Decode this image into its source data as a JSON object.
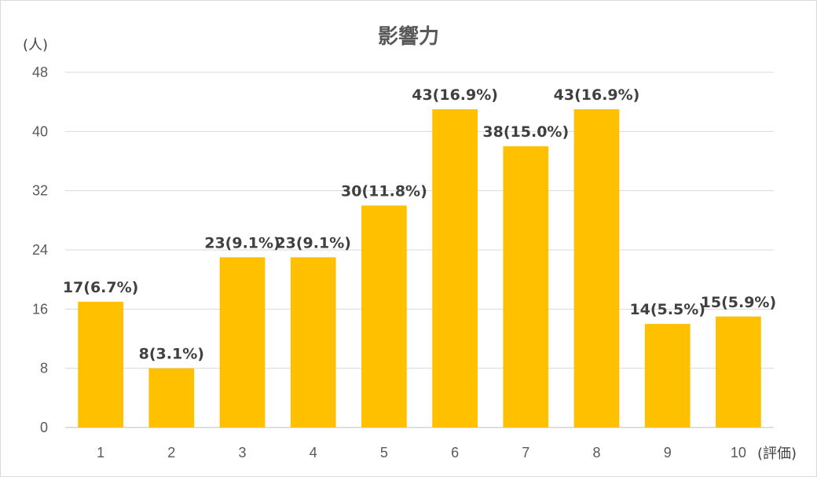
{
  "chart_data": {
    "type": "bar",
    "title": "影響力",
    "ylabel": "(人)",
    "xlabel": "(評価)",
    "categories": [
      "1",
      "2",
      "3",
      "4",
      "5",
      "6",
      "7",
      "8",
      "9",
      "10"
    ],
    "values": [
      17,
      8,
      23,
      23,
      30,
      43,
      38,
      43,
      14,
      15
    ],
    "data_labels": [
      "17(6.7%)",
      "8(3.1%)",
      "23(9.1%)",
      "23(9.1%)",
      "30(11.8%)",
      "43(16.9%)",
      "38(15.0%)",
      "43(16.9%)",
      "14(5.5%)",
      "15(5.9%)"
    ],
    "yticks": [
      "0",
      "8",
      "16",
      "24",
      "32",
      "40",
      "48"
    ],
    "ylim": [
      0,
      48
    ],
    "grid": true,
    "bar_color": "#FFC000"
  }
}
